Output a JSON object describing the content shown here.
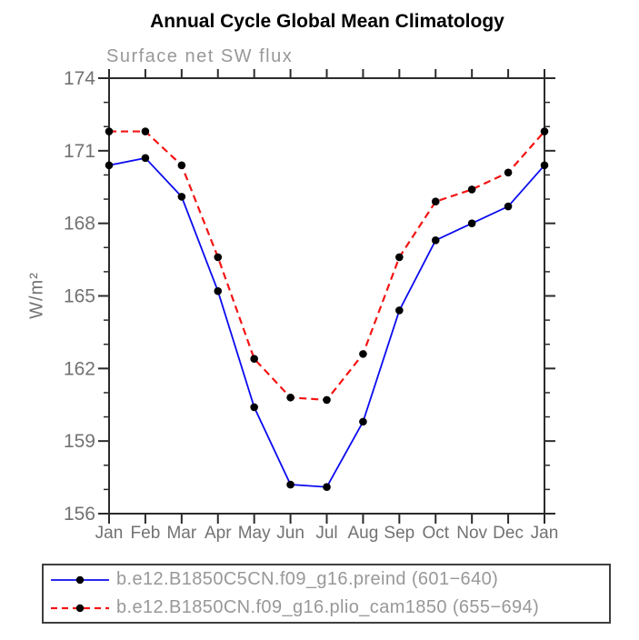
{
  "page": {
    "background": "#ffffff"
  },
  "chart_data": {
    "type": "line",
    "title": "Annual Cycle Global Mean Climatology",
    "subtitle": "Surface net SW flux",
    "ylabel": "W/m²",
    "xlabel": "",
    "categories": [
      "Jan",
      "Feb",
      "Mar",
      "Apr",
      "May",
      "Jun",
      "Jul",
      "Aug",
      "Sep",
      "Oct",
      "Nov",
      "Dec",
      "Jan"
    ],
    "ylim": [
      156,
      174
    ],
    "ytick_major_step": 3,
    "ytick_minor_step": 1,
    "ytick_labels": [
      "156",
      "159",
      "162",
      "165",
      "168",
      "171",
      "174"
    ],
    "grid": false,
    "legend_position": "bottom",
    "axis_color": "#2b2b2b",
    "tick_label_color": "#727272",
    "series": [
      {
        "name": "b.e12.B1850C5CN.f09_g16.preind (601−640)",
        "color": "#0b0bf0",
        "style": "solid",
        "marker": "dot",
        "marker_color": "#000000",
        "values": [
          170.4,
          170.7,
          169.1,
          165.2,
          160.4,
          157.2,
          157.1,
          159.8,
          164.4,
          167.3,
          168.0,
          168.7,
          170.4
        ]
      },
      {
        "name": "b.e12.B1850CN.f09_g16.plio_cam1850 (655−694)",
        "color": "#f41414",
        "style": "dashed",
        "marker": "dot",
        "marker_color": "#000000",
        "values": [
          171.8,
          171.8,
          170.4,
          166.6,
          162.4,
          160.8,
          160.7,
          162.6,
          166.6,
          168.9,
          169.4,
          170.1,
          171.8
        ]
      }
    ]
  }
}
